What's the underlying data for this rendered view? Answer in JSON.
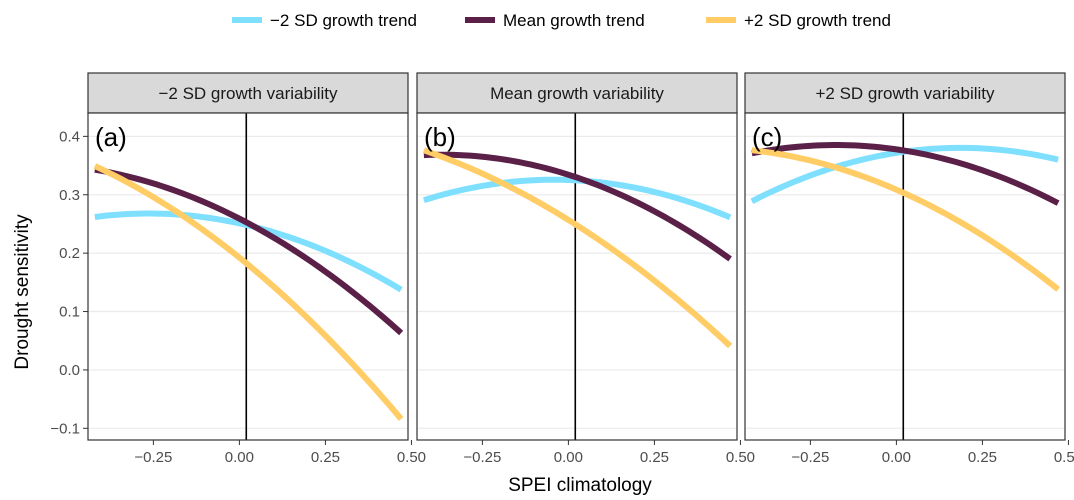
{
  "chart_data": {
    "type": "line",
    "xlabel": "SPEI climatology",
    "ylabel": "Drought sensitivity",
    "xlim": [
      -0.44,
      0.49
    ],
    "ylim": [
      -0.12,
      0.44
    ],
    "x_ticks": [
      -0.25,
      0.0,
      0.25,
      0.5
    ],
    "x_tick_labels": [
      "−0.25",
      "0.00",
      "0.25",
      "0.50"
    ],
    "y_ticks": [
      -0.1,
      0.0,
      0.1,
      0.2,
      0.3,
      0.4
    ],
    "y_tick_labels": [
      "−0.1",
      "0.0",
      "0.1",
      "0.2",
      "0.3",
      "0.4"
    ],
    "reference_line_x": 0.02,
    "grid": true,
    "legend_position": "top",
    "legend": [
      {
        "label": "−2 SD growth trend",
        "color": "#7FDFFF"
      },
      {
        "label": "Mean growth trend",
        "color": "#5A2048"
      },
      {
        "label": "+2 SD growth trend",
        "color": "#FFCC66"
      }
    ],
    "panels": [
      {
        "tag": "(a)",
        "strip": "−2 SD growth variability",
        "series": [
          {
            "name": "−2 SD growth trend",
            "color": "#7FDFFF",
            "x": [
              -0.42,
              -0.25,
              0.0,
              0.25,
              0.47
            ],
            "y": [
              0.262,
              0.268,
              0.25,
              0.205,
              0.137
            ]
          },
          {
            "name": "Mean growth trend",
            "color": "#5A2048",
            "x": [
              -0.42,
              -0.25,
              0.0,
              0.25,
              0.47
            ],
            "y": [
              0.345,
              0.315,
              0.262,
              0.168,
              0.063
            ]
          },
          {
            "name": "+2 SD growth trend",
            "color": "#FFCC66",
            "x": [
              -0.42,
              -0.25,
              0.0,
              0.25,
              0.47
            ],
            "y": [
              0.352,
              0.292,
              0.19,
              0.065,
              -0.087
            ]
          }
        ]
      },
      {
        "tag": "(b)",
        "strip": "Mean growth variability",
        "series": [
          {
            "name": "−2 SD growth trend",
            "color": "#7FDFFF",
            "x": [
              -0.42,
              -0.25,
              0.0,
              0.25,
              0.47
            ],
            "y": [
              0.29,
              0.316,
              0.326,
              0.303,
              0.262
            ]
          },
          {
            "name": "Mean growth trend",
            "color": "#5A2048",
            "x": [
              -0.42,
              -0.25,
              0.0,
              0.25,
              0.47
            ],
            "y": [
              0.37,
              0.362,
              0.333,
              0.276,
              0.188
            ]
          },
          {
            "name": "+2 SD growth trend",
            "color": "#FFCC66",
            "x": [
              -0.42,
              -0.25,
              0.0,
              0.25,
              0.47
            ],
            "y": [
              0.377,
              0.335,
              0.256,
              0.155,
              0.04
            ]
          }
        ]
      },
      {
        "tag": "(c)",
        "strip": "+2 SD growth variability",
        "series": [
          {
            "name": "−2 SD growth trend",
            "color": "#7FDFFF",
            "x": [
              -0.42,
              -0.25,
              0.0,
              0.25,
              0.47
            ],
            "y": [
              0.288,
              0.335,
              0.37,
              0.38,
              0.36
            ]
          },
          {
            "name": "Mean growth trend",
            "color": "#5A2048",
            "x": [
              -0.42,
              -0.25,
              0.0,
              0.25,
              0.47
            ],
            "y": [
              0.372,
              0.382,
              0.378,
              0.343,
              0.285
            ]
          },
          {
            "name": "+2 SD growth trend",
            "color": "#FFCC66",
            "x": [
              -0.42,
              -0.25,
              0.0,
              0.25,
              0.47
            ],
            "y": [
              0.377,
              0.357,
              0.31,
              0.23,
              0.138
            ]
          }
        ]
      }
    ]
  }
}
